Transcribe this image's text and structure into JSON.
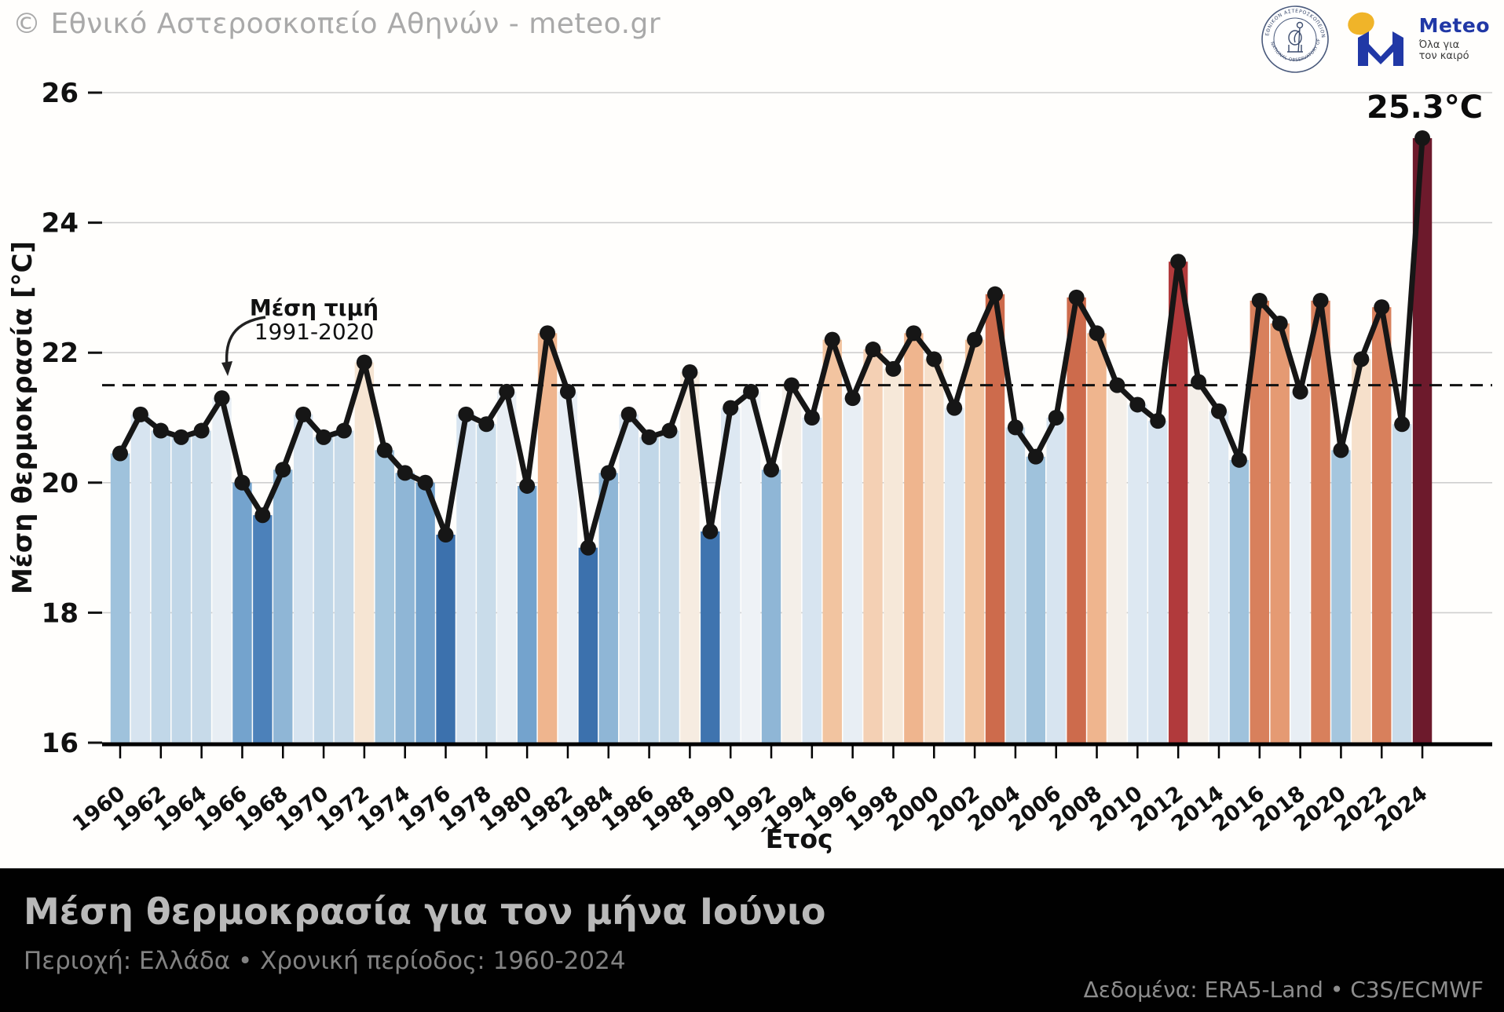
{
  "header": {
    "copyright": "© Εθνικό Αστεροσκοπείο Αθηνών - meteo.gr"
  },
  "logos": {
    "seal": {
      "ring_text_top": "ΕΘΝΙΚΟΝ ΑΣΤΕΡΟΣΚΟΠΕΙΟΝ ΑΘΗΝΩΝ",
      "ring_text_bottom": "NATIONAL OBSERVATORY OF ATHENS"
    },
    "meteo": {
      "name": "Meteo",
      "tagline": "Όλα για\nτον καιρό",
      "blue": "#2138a6",
      "yellow": "#f0b429"
    }
  },
  "chart_data": {
    "type": "bar",
    "overlay": "line",
    "xlabel": "Έτος",
    "ylabel": "Μέση θερμοκρασία [°C]",
    "ylim": [
      16,
      26
    ],
    "yticks": [
      16,
      18,
      20,
      22,
      24,
      26
    ],
    "xtick_step": 2,
    "grid": true,
    "line_color": "#161616",
    "mean_line": {
      "value": 21.5,
      "label": "Μέση τιμή",
      "sublabel": "1991-2020"
    },
    "peak_annotation": {
      "year": 2024,
      "label": "25.3°C"
    },
    "years": [
      1960,
      1961,
      1962,
      1963,
      1964,
      1965,
      1966,
      1967,
      1968,
      1969,
      1970,
      1971,
      1972,
      1973,
      1974,
      1975,
      1976,
      1977,
      1978,
      1979,
      1980,
      1981,
      1982,
      1983,
      1984,
      1985,
      1986,
      1987,
      1988,
      1989,
      1990,
      1991,
      1992,
      1993,
      1994,
      1995,
      1996,
      1997,
      1998,
      1999,
      2000,
      2001,
      2002,
      2003,
      2004,
      2005,
      2006,
      2007,
      2008,
      2009,
      2010,
      2011,
      2012,
      2013,
      2014,
      2015,
      2016,
      2017,
      2018,
      2019,
      2020,
      2021,
      2022,
      2023,
      2024
    ],
    "values": [
      20.45,
      21.05,
      20.8,
      20.7,
      20.8,
      21.3,
      20.0,
      19.5,
      20.2,
      21.05,
      20.7,
      20.8,
      21.85,
      20.5,
      20.15,
      20.0,
      19.2,
      21.05,
      20.9,
      21.4,
      19.95,
      22.3,
      21.4,
      19.0,
      20.15,
      21.05,
      20.7,
      20.8,
      21.7,
      19.25,
      21.15,
      21.4,
      20.2,
      21.5,
      21.0,
      22.2,
      21.3,
      22.05,
      21.75,
      22.3,
      21.9,
      21.15,
      22.2,
      22.9,
      20.85,
      20.4,
      21.0,
      22.85,
      22.3,
      21.5,
      21.2,
      20.95,
      23.4,
      21.55,
      21.1,
      20.35,
      22.8,
      22.45,
      21.4,
      22.8,
      20.5,
      21.9,
      22.7,
      20.9,
      25.3
    ],
    "bar_colors": [
      "#9fc2dc",
      "#d7e4f0",
      "#c1d7e8",
      "#c1d7e8",
      "#c7dae9",
      "#e8eef4",
      "#74a3cd",
      "#4c81ba",
      "#8fb6d6",
      "#d7e4f0",
      "#c1d7e8",
      "#c7dae9",
      "#f6e5d3",
      "#a5c6de",
      "#8fb6d6",
      "#74a3cd",
      "#3c71ad",
      "#d7e4f0",
      "#c9dcea",
      "#e8eef4",
      "#74a3cd",
      "#efb58e",
      "#e8eef4",
      "#3c71ad",
      "#8fb6d6",
      "#d7e4f0",
      "#c1d7e8",
      "#c7dae9",
      "#f6ece1",
      "#3f74af",
      "#dde8f2",
      "#eef2f6",
      "#8fb6d6",
      "#f4efe9",
      "#d7e4f0",
      "#f2c4a0",
      "#e8eef4",
      "#f4d0b4",
      "#f6e8d9",
      "#efb58e",
      "#f6e0cb",
      "#dde8f2",
      "#f2c4a0",
      "#cd6b4c",
      "#c9dcea",
      "#9fc2dc",
      "#d7e4f0",
      "#cd6b4c",
      "#efb58e",
      "#f4efe9",
      "#dde8f2",
      "#d7e4f0",
      "#b13a3c",
      "#f4efe9",
      "#dde8f2",
      "#9fc2dc",
      "#d8805c",
      "#e59a73",
      "#e8eef4",
      "#d8805c",
      "#a5c6de",
      "#f6e0cb",
      "#d8805c",
      "#c9dcea",
      "#6d1a2c"
    ]
  },
  "footer": {
    "title": "Μέση θερμοκρασία για τον μήνα Ιούνιο",
    "subtitle": "Περιοχή: Ελλάδα • Χρονική περίοδος: 1960-2024",
    "source": "Δεδομένα: ERA5-Land • C3S/ECMWF"
  }
}
